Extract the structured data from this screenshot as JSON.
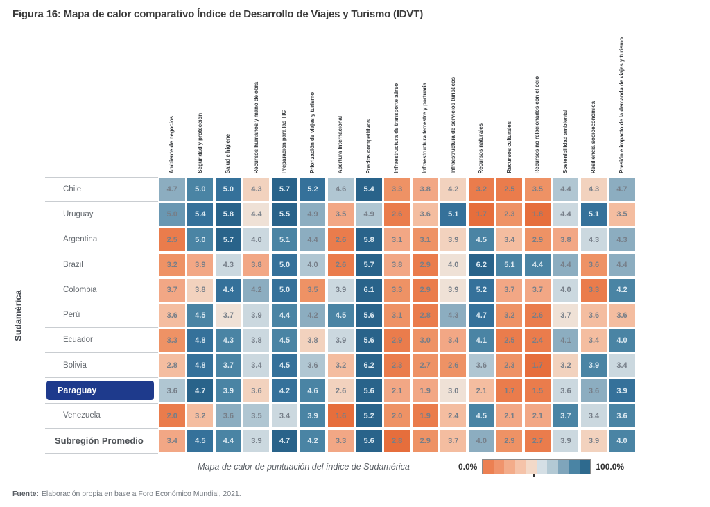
{
  "figure": {
    "title": "Figura 16: Mapa de calor comparativo Índice de Desarrollo de Viajes y Turismo (IDVT)",
    "source_prefix": "Fuente:",
    "source_text": "Elaboración propia en base a Foro Económico Mundial, 2021."
  },
  "colors": {
    "highlight_row_bg": "#1e3a8c",
    "grid_line": "#c9cdd1",
    "light_value_text": "#ddeaf2",
    "dark_value_text": "#767e88"
  },
  "chart_data": {
    "type": "heatmap",
    "title": "Figura 16: Mapa de calor comparativo Índice de Desarrollo de Viajes y Turismo (IDVT)",
    "ylabel": "Sudamérica",
    "caption": "Mapa de calor de puntuación del índice de Sudamérica",
    "value_scale_note": "cell shading = percentile 0.0%–100.0%",
    "columns": [
      "Ambiente de negocios",
      "Seguridad y protección",
      "Salud e higiene",
      "Recursos humanos y mano de obra",
      "Preparación para las TIC",
      "Priorización de viajes y turismo",
      "Apertura Internacional",
      "Precios competitivos",
      "Infraestructura de transporte aéreo",
      "Infraestructura terrestre y portuaria",
      "Infraestructura de servicios turísticos",
      "Recursos naturales",
      "Recursos culturales",
      "Recursos no relacionados con el ocio",
      "Sostenibilidad ambiental",
      "Resiliencia socioeconómica",
      "Presión e impacto de la demanda de viajes y turismo"
    ],
    "palette": [
      "#E66E3C",
      "#EA7C4C",
      "#EE9265",
      "#F2A785",
      "#F4BDA0",
      "#F2D2BE",
      "#EFE1D6",
      "#CBD8DF",
      "#B0C6D2",
      "#8CADC0",
      "#6997B2",
      "#4A84A4",
      "#35719A",
      "#29638A"
    ],
    "light_text_from_idx": 11,
    "rows": [
      {
        "label": "Chile",
        "values": [
          "4.7",
          "5.0",
          "5.0",
          "4.3",
          "5.7",
          "5.2",
          "4.6",
          "5.4",
          "3.3",
          "3.8",
          "4.2",
          "3.2",
          "2.5",
          "3.5",
          "4.4",
          "4.3",
          "4.7"
        ],
        "color_idx": [
          9,
          11,
          12,
          5,
          13,
          12,
          8,
          13,
          2,
          3,
          5,
          1,
          1,
          2,
          8,
          5,
          9
        ]
      },
      {
        "label": "Uruguay",
        "values": [
          "5.0",
          "5.4",
          "5.8",
          "4.4",
          "5.5",
          "4.9",
          "3.5",
          "4.9",
          "2.6",
          "3.6",
          "5.1",
          "1.7",
          "2.3",
          "1.8",
          "4.4",
          "5.1",
          "3.5"
        ],
        "color_idx": [
          10,
          12,
          13,
          6,
          13,
          9,
          3,
          8,
          1,
          4,
          12,
          0,
          2,
          0,
          7,
          12,
          4
        ]
      },
      {
        "label": "Argentina",
        "values": [
          "2.5",
          "5.0",
          "5.7",
          "4.0",
          "5.1",
          "4.4",
          "2.6",
          "5.8",
          "3.1",
          "3.1",
          "3.9",
          "4.5",
          "3.4",
          "2.9",
          "3.8",
          "4.3",
          "4.3"
        ],
        "color_idx": [
          1,
          11,
          13,
          7,
          11,
          9,
          1,
          13,
          3,
          2,
          5,
          11,
          4,
          2,
          3,
          7,
          9
        ]
      },
      {
        "label": "Brazil",
        "values": [
          "3.2",
          "3.9",
          "4.3",
          "3.8",
          "5.0",
          "4.0",
          "2.6",
          "5.7",
          "3.8",
          "2.9",
          "4.0",
          "6.2",
          "5.1",
          "4.4",
          "4.4",
          "3.6",
          "4.4"
        ],
        "color_idx": [
          2,
          3,
          7,
          3,
          12,
          8,
          1,
          13,
          3,
          1,
          6,
          13,
          11,
          11,
          9,
          2,
          9
        ]
      },
      {
        "label": "Colombia",
        "values": [
          "3.7",
          "3.8",
          "4.4",
          "4.2",
          "5.0",
          "3.5",
          "3.9",
          "6.1",
          "3.3",
          "2.9",
          "3.9",
          "5.2",
          "3.7",
          "3.7",
          "4.0",
          "3.3",
          "4.2"
        ],
        "color_idx": [
          3,
          5,
          12,
          9,
          12,
          2,
          7,
          13,
          2,
          1,
          6,
          12,
          3,
          3,
          7,
          1,
          11
        ]
      },
      {
        "label": "Perú",
        "values": [
          "3.6",
          "4.5",
          "3.7",
          "3.9",
          "4.4",
          "4.2",
          "4.5",
          "5.6",
          "3.1",
          "2.8",
          "4.3",
          "4.7",
          "3.2",
          "2.6",
          "3.7",
          "3.6",
          "3.6"
        ],
        "color_idx": [
          4,
          11,
          6,
          7,
          11,
          9,
          11,
          13,
          2,
          1,
          9,
          12,
          2,
          1,
          6,
          4,
          4
        ]
      },
      {
        "label": "Ecuador",
        "values": [
          "3.3",
          "4.8",
          "4.3",
          "3.8",
          "4.5",
          "3.8",
          "3.9",
          "5.6",
          "2.9",
          "3.0",
          "3.4",
          "4.1",
          "2.5",
          "2.4",
          "4.1",
          "3.4",
          "4.0"
        ],
        "color_idx": [
          2,
          12,
          11,
          7,
          11,
          5,
          7,
          13,
          1,
          2,
          3,
          11,
          1,
          1,
          9,
          4,
          11
        ]
      },
      {
        "label": "Bolivia",
        "values": [
          "2.8",
          "4.8",
          "3.7",
          "3.4",
          "4.5",
          "3.6",
          "3.2",
          "6.2",
          "2.3",
          "2.7",
          "2.6",
          "3.6",
          "2.3",
          "1.7",
          "3.2",
          "3.9",
          "3.4"
        ],
        "color_idx": [
          4,
          12,
          11,
          7,
          12,
          8,
          4,
          13,
          1,
          2,
          2,
          8,
          2,
          0,
          5,
          11,
          7
        ]
      },
      {
        "label": "Paraguay",
        "highlight": true,
        "values": [
          "3.6",
          "4.7",
          "3.9",
          "3.6",
          "4.2",
          "4.6",
          "2.6",
          "5.6",
          "2.1",
          "1.9",
          "3.0",
          "2.1",
          "1.7",
          "1.5",
          "3.6",
          "3.6",
          "3.9"
        ],
        "color_idx": [
          8,
          13,
          11,
          5,
          12,
          11,
          5,
          13,
          3,
          3,
          6,
          4,
          1,
          1,
          7,
          9,
          12
        ]
      },
      {
        "label": "Venezuela",
        "values": [
          "2.0",
          "3.2",
          "3.6",
          "3.5",
          "3.4",
          "3.9",
          "1.6",
          "5.2",
          "2.0",
          "1.9",
          "2.4",
          "4.5",
          "2.1",
          "2.1",
          "3.7",
          "3.4",
          "3.6"
        ],
        "color_idx": [
          1,
          4,
          9,
          8,
          7,
          11,
          0,
          13,
          2,
          1,
          4,
          11,
          3,
          3,
          11,
          7,
          11
        ]
      },
      {
        "label": "Subregión Promedio",
        "bold": true,
        "values": [
          "3.4",
          "4.5",
          "4.4",
          "3.9",
          "4.7",
          "4.2",
          "3.3",
          "5.6",
          "2.8",
          "2.9",
          "3.7",
          "4.0",
          "2.9",
          "2.7",
          "3.9",
          "3.9",
          "4.0"
        ],
        "color_idx": [
          3,
          12,
          11,
          7,
          13,
          11,
          3,
          13,
          0,
          2,
          4,
          9,
          2,
          1,
          7,
          5,
          11
        ]
      }
    ],
    "legend": {
      "position": "bottom-right",
      "min_label": "0.0%",
      "max_label": "100.0%",
      "colors": [
        "#EC8052",
        "#F0946C",
        "#F3AC8A",
        "#F5C3A9",
        "#F3D9C8",
        "#D5DFE5",
        "#B3C9D4",
        "#7FA5BB",
        "#4A84A4",
        "#2E6A8E"
      ]
    }
  }
}
